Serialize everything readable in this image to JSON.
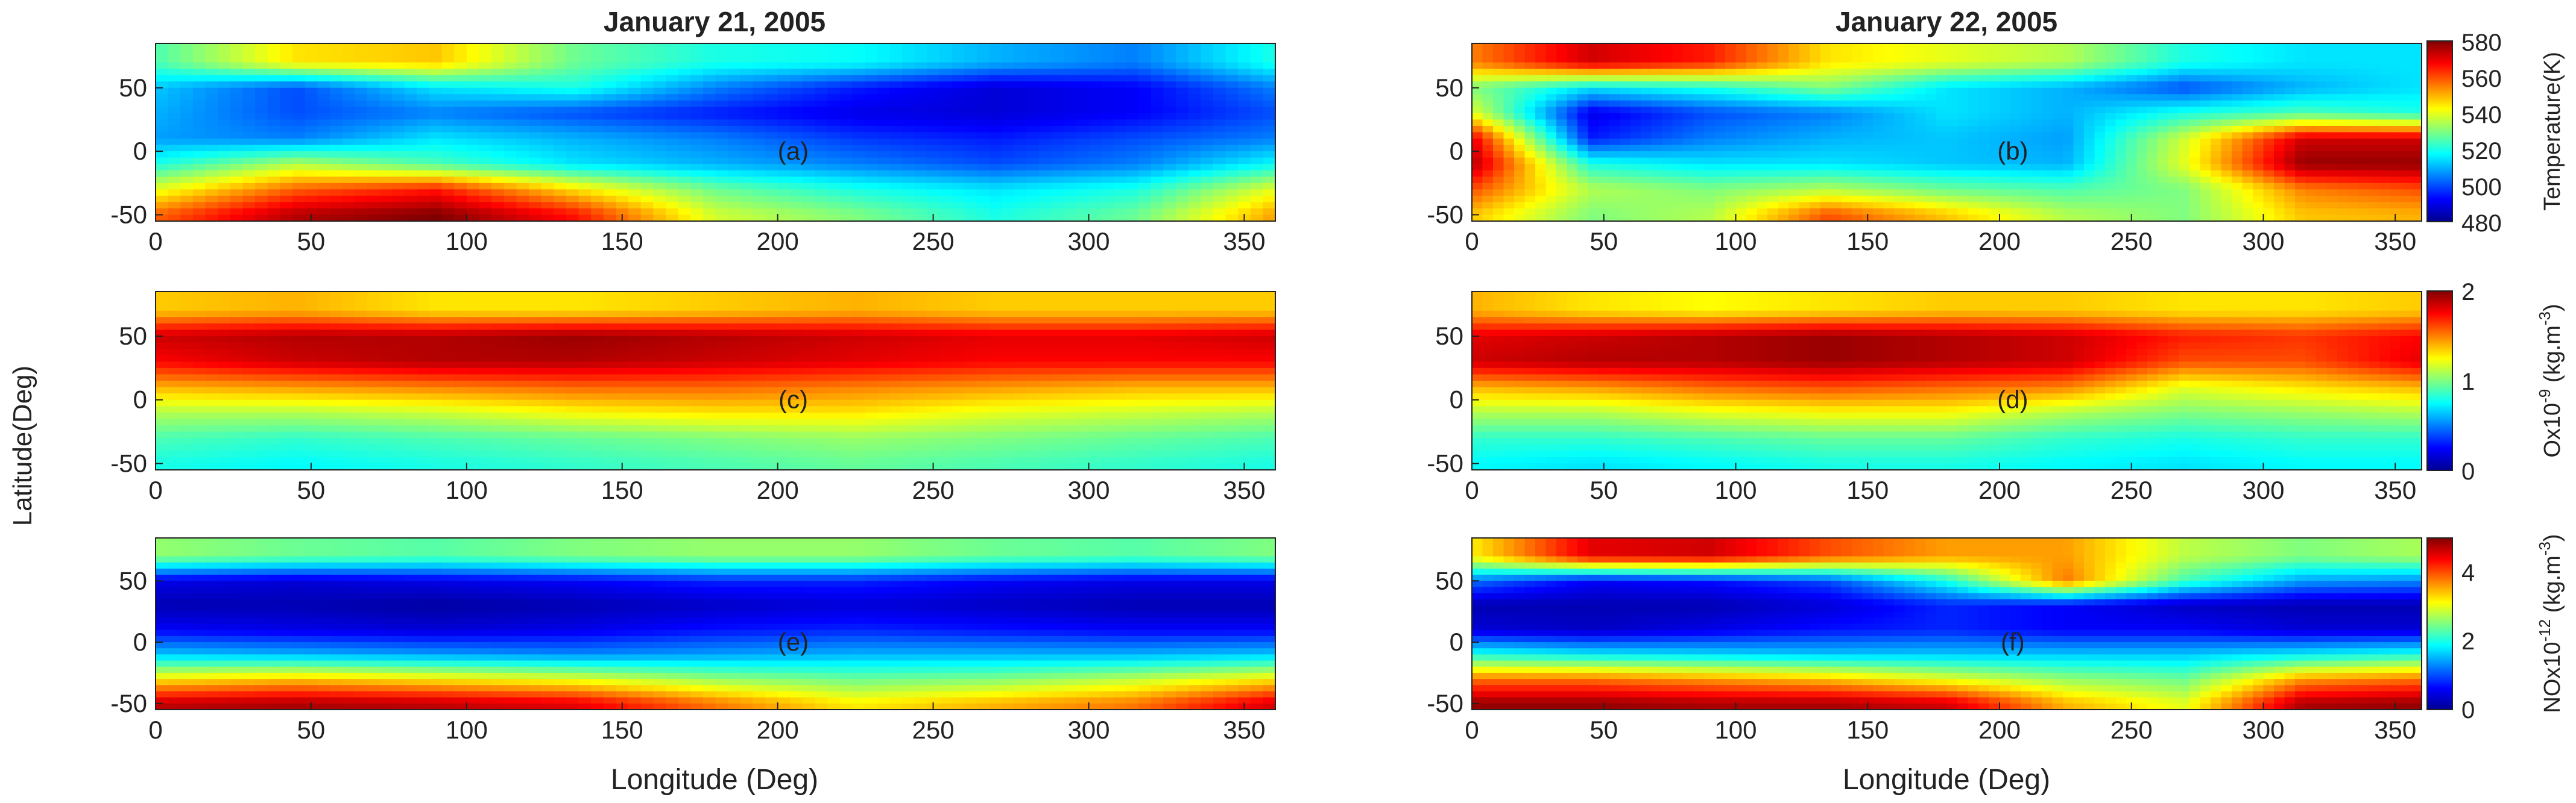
{
  "figure": {
    "columns": [
      {
        "title": "January 21, 2005"
      },
      {
        "title": "January 22, 2005"
      }
    ],
    "ylabel": "Latitude(Deg)",
    "xlabel": "Longitude (Deg)",
    "colorbars": [
      {
        "label": "Temperature(K)",
        "ticks": [
          "480",
          "500",
          "520",
          "540",
          "560",
          "580"
        ],
        "range": [
          480,
          580
        ]
      },
      {
        "label_main": "Ox10",
        "label_exp": "-9",
        "label_unit": " (kg.m",
        "label_unit_exp": "-3",
        "label_close": ")",
        "ticks": [
          "0",
          "1",
          "2"
        ],
        "range": [
          0,
          2
        ]
      },
      {
        "label_main": "NOx10",
        "label_exp": "-12",
        "label_unit": " (kg.m",
        "label_unit_exp": "-3",
        "label_close": ")",
        "ticks": [
          "0",
          "2",
          "4"
        ],
        "range": [
          0,
          5
        ]
      }
    ],
    "colormap": "jet"
  },
  "chart_data": [
    {
      "panel": "(a)",
      "type": "heatmap",
      "date": "January 21, 2005",
      "quantity": "Temperature(K)",
      "xlim": [
        0,
        360
      ],
      "ylim": [
        -55,
        85
      ],
      "xticks": [
        "0",
        "50",
        "100",
        "150",
        "200",
        "250",
        "300",
        "350"
      ],
      "yticks": [
        "50",
        "0",
        "-50"
      ],
      "x": [
        0,
        45,
        90,
        135,
        180,
        225,
        270,
        315,
        360
      ],
      "y": [
        -50,
        -30,
        -10,
        10,
        30,
        50,
        70
      ],
      "values": [
        [
          558,
          575,
          580,
          566,
          538,
          530,
          520,
          528,
          552
        ],
        [
          540,
          558,
          565,
          545,
          528,
          520,
          515,
          520,
          540
        ],
        [
          520,
          535,
          525,
          515,
          510,
          505,
          500,
          505,
          518
        ],
        [
          508,
          505,
          515,
          510,
          505,
          498,
          495,
          500,
          505
        ],
        [
          510,
          500,
          505,
          500,
          495,
          490,
          488,
          492,
          500
        ],
        [
          512,
          500,
          515,
          520,
          505,
          495,
          488,
          492,
          505
        ],
        [
          525,
          545,
          548,
          528,
          520,
          518,
          510,
          505,
          520
        ]
      ]
    },
    {
      "panel": "(b)",
      "type": "heatmap",
      "date": "January 22, 2005",
      "quantity": "Temperature(K)",
      "xlim": [
        0,
        360
      ],
      "ylim": [
        -55,
        85
      ],
      "xticks": [
        "0",
        "50",
        "100",
        "150",
        "200",
        "250",
        "300",
        "350"
      ],
      "yticks": [
        "50",
        "0",
        "-50"
      ],
      "x": [
        0,
        45,
        90,
        135,
        180,
        225,
        270,
        315,
        360
      ],
      "y": [
        -50,
        -30,
        -10,
        10,
        30,
        50,
        70
      ],
      "values": [
        [
          548,
          530,
          535,
          560,
          548,
          535,
          530,
          548,
          550
        ],
        [
          560,
          535,
          530,
          535,
          528,
          525,
          530,
          555,
          560
        ],
        [
          575,
          520,
          515,
          515,
          512,
          510,
          540,
          578,
          578
        ],
        [
          570,
          495,
          505,
          510,
          512,
          508,
          538,
          572,
          572
        ],
        [
          540,
          490,
          500,
          505,
          515,
          510,
          520,
          525,
          520
        ],
        [
          530,
          515,
          520,
          530,
          515,
          510,
          500,
          510,
          515
        ],
        [
          555,
          572,
          565,
          545,
          540,
          535,
          520,
          515,
          515
        ]
      ]
    },
    {
      "panel": "(c)",
      "type": "heatmap",
      "date": "January 21, 2005",
      "quantity": "Ox10^-9 (kg.m^-3)",
      "xlim": [
        0,
        360
      ],
      "ylim": [
        -55,
        85
      ],
      "xticks": [
        "0",
        "50",
        "100",
        "150",
        "200",
        "250",
        "300",
        "350"
      ],
      "yticks": [
        "50",
        "0",
        "-50"
      ],
      "x": [
        0,
        45,
        90,
        135,
        180,
        225,
        270,
        315,
        360
      ],
      "y": [
        -50,
        -30,
        -10,
        10,
        30,
        50,
        70
      ],
      "values": [
        [
          0.8,
          0.75,
          0.8,
          0.85,
          0.9,
          0.95,
          0.9,
          0.85,
          0.8
        ],
        [
          0.9,
          0.85,
          0.9,
          0.95,
          1.0,
          1.05,
          1.0,
          0.95,
          0.9
        ],
        [
          1.1,
          1.1,
          1.15,
          1.25,
          1.3,
          1.3,
          1.2,
          1.15,
          1.1
        ],
        [
          1.4,
          1.45,
          1.5,
          1.55,
          1.55,
          1.5,
          1.45,
          1.4,
          1.4
        ],
        [
          1.75,
          1.85,
          1.9,
          1.9,
          1.85,
          1.8,
          1.75,
          1.75,
          1.75
        ],
        [
          1.85,
          1.9,
          1.9,
          1.95,
          1.9,
          1.85,
          1.8,
          1.8,
          1.85
        ],
        [
          1.35,
          1.4,
          1.3,
          1.3,
          1.35,
          1.4,
          1.35,
          1.35,
          1.35
        ]
      ]
    },
    {
      "panel": "(d)",
      "type": "heatmap",
      "date": "January 22, 2005",
      "quantity": "Ox10^-9 (kg.m^-3)",
      "xlim": [
        0,
        360
      ],
      "ylim": [
        -55,
        85
      ],
      "xticks": [
        "0",
        "50",
        "100",
        "150",
        "200",
        "250",
        "300",
        "350"
      ],
      "yticks": [
        "50",
        "0",
        "-50"
      ],
      "x": [
        0,
        45,
        90,
        135,
        180,
        225,
        270,
        315,
        360
      ],
      "y": [
        -50,
        -30,
        -10,
        10,
        30,
        50,
        70
      ],
      "values": [
        [
          0.75,
          0.7,
          0.75,
          0.8,
          0.8,
          0.75,
          0.7,
          0.75,
          0.75
        ],
        [
          0.85,
          0.85,
          0.9,
          0.95,
          0.95,
          0.85,
          0.8,
          0.85,
          0.85
        ],
        [
          1.1,
          1.1,
          1.2,
          1.25,
          1.25,
          1.1,
          1.0,
          1.05,
          1.1
        ],
        [
          1.4,
          1.45,
          1.55,
          1.6,
          1.55,
          1.5,
          1.2,
          1.3,
          1.4
        ],
        [
          1.85,
          1.9,
          1.9,
          1.95,
          1.9,
          1.85,
          1.6,
          1.6,
          1.8
        ],
        [
          1.8,
          1.85,
          1.9,
          1.95,
          1.9,
          1.85,
          1.7,
          1.65,
          1.75
        ],
        [
          1.4,
          1.3,
          1.25,
          1.3,
          1.35,
          1.35,
          1.3,
          1.3,
          1.35
        ]
      ]
    },
    {
      "panel": "(e)",
      "type": "heatmap",
      "date": "January 21, 2005",
      "quantity": "NOx10^-12 (kg.m^-3)",
      "xlim": [
        0,
        360
      ],
      "ylim": [
        -55,
        85
      ],
      "xticks": [
        "0",
        "50",
        "100",
        "150",
        "200",
        "250",
        "300",
        "350"
      ],
      "yticks": [
        "50",
        "0",
        "-50"
      ],
      "x": [
        0,
        45,
        90,
        135,
        180,
        225,
        270,
        315,
        360
      ],
      "y": [
        -50,
        -30,
        -10,
        10,
        30,
        50,
        70
      ],
      "values": [
        [
          4.7,
          4.8,
          4.7,
          4.5,
          3.8,
          3.2,
          3.5,
          3.8,
          4.6
        ],
        [
          3.2,
          3.4,
          3.2,
          3.0,
          2.6,
          2.4,
          2.5,
          2.8,
          3.2
        ],
        [
          1.6,
          1.5,
          1.4,
          1.3,
          1.4,
          1.5,
          1.5,
          1.5,
          1.6
        ],
        [
          0.6,
          0.5,
          0.4,
          0.5,
          0.7,
          0.8,
          0.7,
          0.6,
          0.6
        ],
        [
          0.2,
          0.2,
          0.1,
          0.2,
          0.3,
          0.4,
          0.3,
          0.2,
          0.2
        ],
        [
          0.5,
          0.4,
          0.5,
          0.6,
          0.8,
          0.8,
          0.6,
          0.5,
          0.5
        ],
        [
          2.6,
          2.4,
          2.3,
          2.5,
          2.6,
          2.6,
          2.4,
          2.3,
          2.5
        ]
      ]
    },
    {
      "panel": "(f)",
      "type": "heatmap",
      "date": "January 22, 2005",
      "quantity": "NOx10^-12 (kg.m^-3)",
      "xlim": [
        0,
        360
      ],
      "ylim": [
        -55,
        85
      ],
      "xticks": [
        "0",
        "50",
        "100",
        "150",
        "200",
        "250",
        "300",
        "350"
      ],
      "yticks": [
        "50",
        "0",
        "-50"
      ],
      "x": [
        0,
        45,
        90,
        135,
        180,
        225,
        270,
        315,
        360
      ],
      "y": [
        -50,
        -30,
        -10,
        10,
        30,
        50,
        70
      ],
      "values": [
        [
          4.9,
          4.9,
          4.8,
          4.8,
          4.6,
          3.5,
          3.0,
          4.8,
          4.9
        ],
        [
          3.8,
          3.8,
          3.6,
          3.4,
          3.0,
          2.6,
          2.4,
          3.6,
          3.8
        ],
        [
          2.0,
          1.8,
          1.7,
          1.6,
          1.6,
          1.6,
          1.6,
          1.8,
          2.0
        ],
        [
          0.4,
          0.3,
          0.5,
          0.7,
          0.8,
          0.6,
          0.6,
          0.4,
          0.4
        ],
        [
          0.2,
          0.2,
          0.2,
          0.4,
          0.8,
          0.6,
          0.3,
          0.2,
          0.2
        ],
        [
          1.2,
          0.6,
          0.7,
          1.0,
          2.0,
          3.8,
          2.2,
          1.4,
          1.3
        ],
        [
          3.2,
          4.5,
          4.6,
          4.0,
          3.6,
          3.6,
          2.8,
          2.5,
          2.7
        ]
      ]
    }
  ]
}
